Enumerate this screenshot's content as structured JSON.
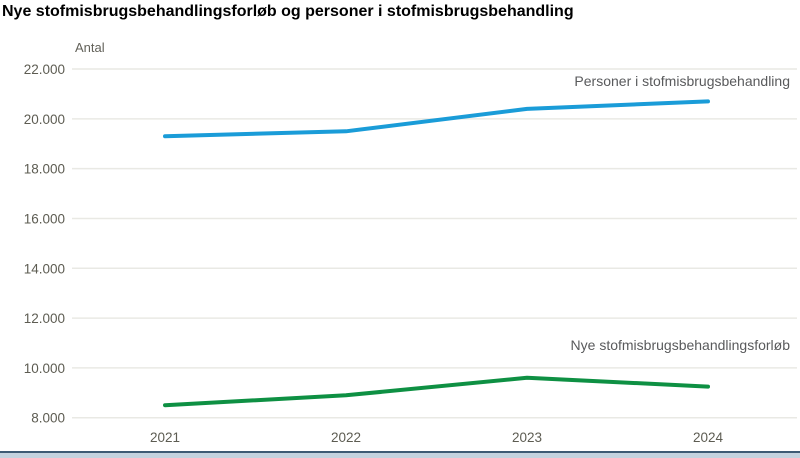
{
  "page": {
    "title": "Nye stofmisbrugsbehandlingsforløb og personer i stofmisbrugsbehandling"
  },
  "chart_data": {
    "type": "line",
    "title": "Nye stofmisbrugsbehandlingsforløb og personer i stofmisbrugsbehandling",
    "ylabel": "Antal",
    "xlabel": "",
    "x": [
      2021,
      2022,
      2023,
      2024
    ],
    "x_labels": [
      "2021",
      "2022",
      "2023",
      "2024"
    ],
    "series": [
      {
        "name": "Personer i stofmisbrugsbehandling",
        "values": [
          19300,
          19500,
          20400,
          20700
        ],
        "color": "#1a9cd8"
      },
      {
        "name": "Nye stofmisbrugsbehandlingsforløb",
        "values": [
          8500,
          8900,
          9600,
          9250
        ],
        "color": "#0e9043"
      }
    ],
    "ylim": [
      8000,
      22000
    ],
    "yticks": [
      8000,
      10000,
      12000,
      14000,
      16000,
      18000,
      20000,
      22000
    ],
    "ytick_labels": [
      "8.000",
      "10.000",
      "12.000",
      "14.000",
      "16.000",
      "18.000",
      "20.000",
      "22.000"
    ],
    "grid": "horizontal-only",
    "legend_position": "inline-right-of-plot"
  },
  "colors": {
    "title_text": "#000000",
    "tick_text": "#5d5c52",
    "axis_title_text": "#63625a",
    "series_label_text": "#595a5c",
    "gridline": "#e9e9e4",
    "line_persons": "#1a9cd8",
    "line_forloeb": "#0e9043",
    "footer_rule_dark": "#3d5a73",
    "footer_rule_light": "#c3d2de",
    "background": "#ffffff"
  }
}
